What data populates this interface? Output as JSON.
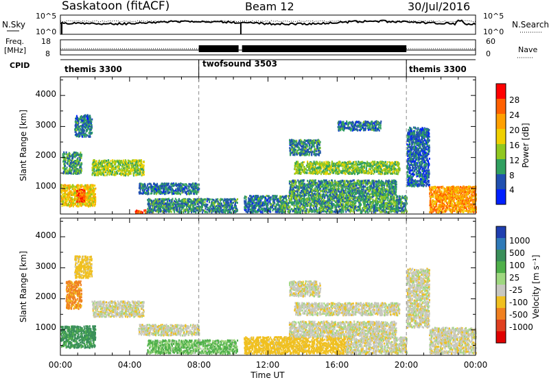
{
  "header": {
    "station": "Saskatoon (fitACF)",
    "beam": "Beam 12",
    "date": "30/Jul/2016"
  },
  "top_panels": {
    "nsky_label": "N.Sky",
    "nsky_ticks": [
      "10^5",
      "10^0"
    ],
    "nsearch_label": "N.Search",
    "nsearch_ticks": [
      "10^5",
      "10^0"
    ],
    "freq_label_1": "Freq.",
    "freq_label_2": "[MHz]",
    "freq_ticks": [
      "18",
      "8"
    ],
    "nave_label": "Nave",
    "nave_ticks": [
      "60",
      "0"
    ],
    "cpid_label": "CPID"
  },
  "cpid_segments": [
    {
      "label": "themis 3300",
      "start_hour": 0,
      "end_hour": 8
    },
    {
      "label": "twofsound 3503",
      "start_hour": 8,
      "end_hour": 20
    },
    {
      "label": "themis 3300",
      "start_hour": 20,
      "end_hour": 24
    }
  ],
  "axes": {
    "xlabel": "Time UT",
    "x_ticks": [
      "00:00",
      "04:00",
      "08:00",
      "12:00",
      "16:00",
      "20:00",
      "00:00"
    ],
    "ylabel": "Slant Range [km]",
    "y_ticks": [
      "1000",
      "2000",
      "3000",
      "4000"
    ]
  },
  "colorbars": {
    "power_label": "Power [dB]",
    "power_ticks": [
      "28",
      "24",
      "20",
      "16",
      "12",
      "8",
      "4"
    ],
    "power_colors": [
      "#ff0000",
      "#ff6000",
      "#ffa000",
      "#f0d000",
      "#90c820",
      "#30a060",
      "#2050b0",
      "#0020ff"
    ],
    "velocity_label": "Velocity [m s⁻¹]",
    "velocity_ticks": [
      "1000",
      "500",
      "100",
      "25",
      "-25",
      "-100",
      "-500",
      "-1000"
    ],
    "velocity_colors": [
      "#1f3fb0",
      "#2f7ab8",
      "#3a8f5a",
      "#4fb04a",
      "#9fd880",
      "#c8c8c0",
      "#f0c020",
      "#f08020",
      "#e04020",
      "#e00000"
    ]
  },
  "chart_data": [
    {
      "type": "heatmap",
      "title": "",
      "xlabel": "Time UT",
      "ylabel": "Slant Range [km]",
      "xlim": [
        0,
        24
      ],
      "ylim": [
        180,
        4600
      ],
      "colorbar_label": "Power [dB]",
      "value_range": [
        0,
        30
      ],
      "regions": [
        {
          "t": [
            0.0,
            2.0
          ],
          "r": [
            450,
            1150
          ],
          "v": 18
        },
        {
          "t": [
            0.9,
            1.4
          ],
          "r": [
            600,
            1000
          ],
          "v": 26
        },
        {
          "t": [
            0.1,
            1.2
          ],
          "r": [
            1500,
            2200
          ],
          "v": 9
        },
        {
          "t": [
            0.8,
            1.8
          ],
          "r": [
            2700,
            3400
          ],
          "v": 6
        },
        {
          "t": [
            1.8,
            4.8
          ],
          "r": [
            1450,
            1950
          ],
          "v": 13
        },
        {
          "t": [
            4.3,
            5.3
          ],
          "r": [
            240,
            330
          ],
          "v": 28
        },
        {
          "t": [
            4.5,
            8.0
          ],
          "r": [
            850,
            1200
          ],
          "v": 6
        },
        {
          "t": [
            5.0,
            10.2
          ],
          "r": [
            260,
            700
          ],
          "v": 7
        },
        {
          "t": [
            10.6,
            12.6
          ],
          "r": [
            260,
            800
          ],
          "v": 6
        },
        {
          "t": [
            12.6,
            20.0
          ],
          "r": [
            260,
            800
          ],
          "v": 9
        },
        {
          "t": [
            13.2,
            15.0
          ],
          "r": [
            2100,
            2600
          ],
          "v": 7
        },
        {
          "t": [
            13.5,
            19.6
          ],
          "r": [
            1500,
            1900
          ],
          "v": 12
        },
        {
          "t": [
            13.2,
            19.4
          ],
          "r": [
            800,
            1300
          ],
          "v": 8
        },
        {
          "t": [
            16.0,
            18.5
          ],
          "r": [
            2900,
            3200
          ],
          "v": 6
        },
        {
          "t": [
            20.0,
            21.3
          ],
          "r": [
            1100,
            3000
          ],
          "v": 5
        },
        {
          "t": [
            21.3,
            24.0
          ],
          "r": [
            260,
            1100
          ],
          "v": 22
        }
      ]
    },
    {
      "type": "heatmap",
      "title": "",
      "xlabel": "Time UT",
      "ylabel": "Slant Range [km]",
      "xlim": [
        0,
        24
      ],
      "ylim": [
        180,
        4600
      ],
      "colorbar_label": "Velocity [m s⁻¹]",
      "value_range": [
        -1000,
        1000
      ],
      "regions": [
        {
          "t": [
            0.0,
            2.0
          ],
          "r": [
            450,
            1150
          ],
          "v": 120
        },
        {
          "t": [
            0.3,
            1.2
          ],
          "r": [
            1700,
            2600
          ],
          "v": -120
        },
        {
          "t": [
            0.8,
            1.8
          ],
          "r": [
            2700,
            3400
          ],
          "v": -60
        },
        {
          "t": [
            1.8,
            4.8
          ],
          "r": [
            1450,
            1950
          ],
          "v": 0
        },
        {
          "t": [
            4.5,
            8.0
          ],
          "r": [
            850,
            1200
          ],
          "v": 0
        },
        {
          "t": [
            5.0,
            10.2
          ],
          "r": [
            260,
            700
          ],
          "v": 60
        },
        {
          "t": [
            10.6,
            16.5
          ],
          "r": [
            260,
            800
          ],
          "v": -60
        },
        {
          "t": [
            16.5,
            20.0
          ],
          "r": [
            260,
            800
          ],
          "v": 0
        },
        {
          "t": [
            13.2,
            15.0
          ],
          "r": [
            2100,
            2600
          ],
          "v": 0
        },
        {
          "t": [
            13.5,
            19.6
          ],
          "r": [
            1500,
            1900
          ],
          "v": 0
        },
        {
          "t": [
            13.2,
            19.4
          ],
          "r": [
            800,
            1300
          ],
          "v": 0
        },
        {
          "t": [
            20.0,
            21.3
          ],
          "r": [
            1100,
            3000
          ],
          "v": 0
        },
        {
          "t": [
            21.3,
            24.0
          ],
          "r": [
            260,
            1100
          ],
          "v": 0
        }
      ]
    }
  ]
}
